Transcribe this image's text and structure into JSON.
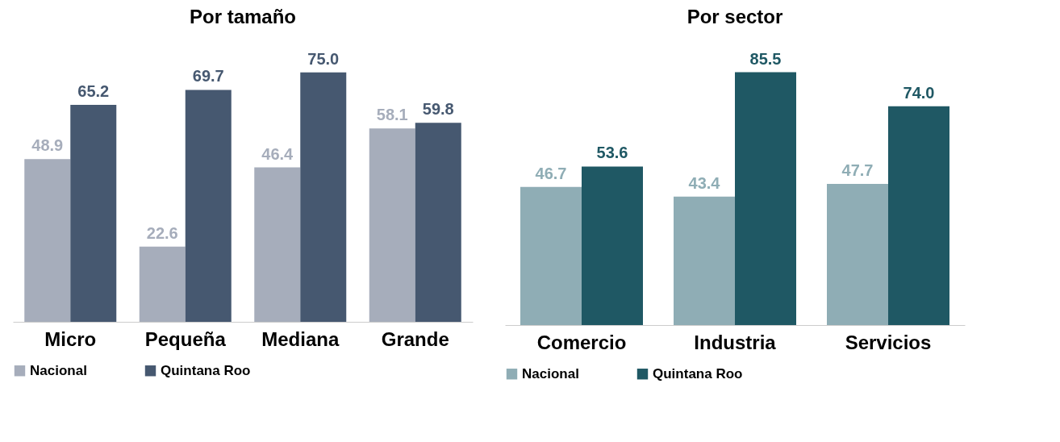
{
  "chart_data": [
    {
      "type": "bar",
      "title": "Por tamaño",
      "categories": [
        "Micro",
        "Pequeña",
        "Mediana",
        "Grande"
      ],
      "series": [
        {
          "name": "Nacional",
          "color": "#a6adbb",
          "values": [
            48.9,
            22.6,
            46.4,
            58.1
          ],
          "value_labels": [
            "48.9",
            "22.6",
            "46.4",
            "58.1"
          ]
        },
        {
          "name": "Quintana Roo",
          "color": "#465870",
          "values": [
            65.2,
            69.7,
            75.0,
            59.8
          ],
          "value_labels": [
            "65.2",
            "69.7",
            "75.0",
            "59.8"
          ]
        }
      ],
      "legend": "bottom"
    },
    {
      "type": "bar",
      "title": "Por sector",
      "categories": [
        "Comercio",
        "Industria",
        "Servicios"
      ],
      "series": [
        {
          "name": "Nacional",
          "color": "#8fadb5",
          "values": [
            46.7,
            43.4,
            47.7
          ],
          "value_labels": [
            "46.7",
            "43.4",
            "47.7"
          ]
        },
        {
          "name": "Quintana Roo",
          "color": "#1f5864",
          "values": [
            53.6,
            85.5,
            74.0
          ],
          "value_labels": [
            "53.6",
            "85.5",
            "74.0"
          ]
        }
      ],
      "legend": "bottom"
    }
  ]
}
